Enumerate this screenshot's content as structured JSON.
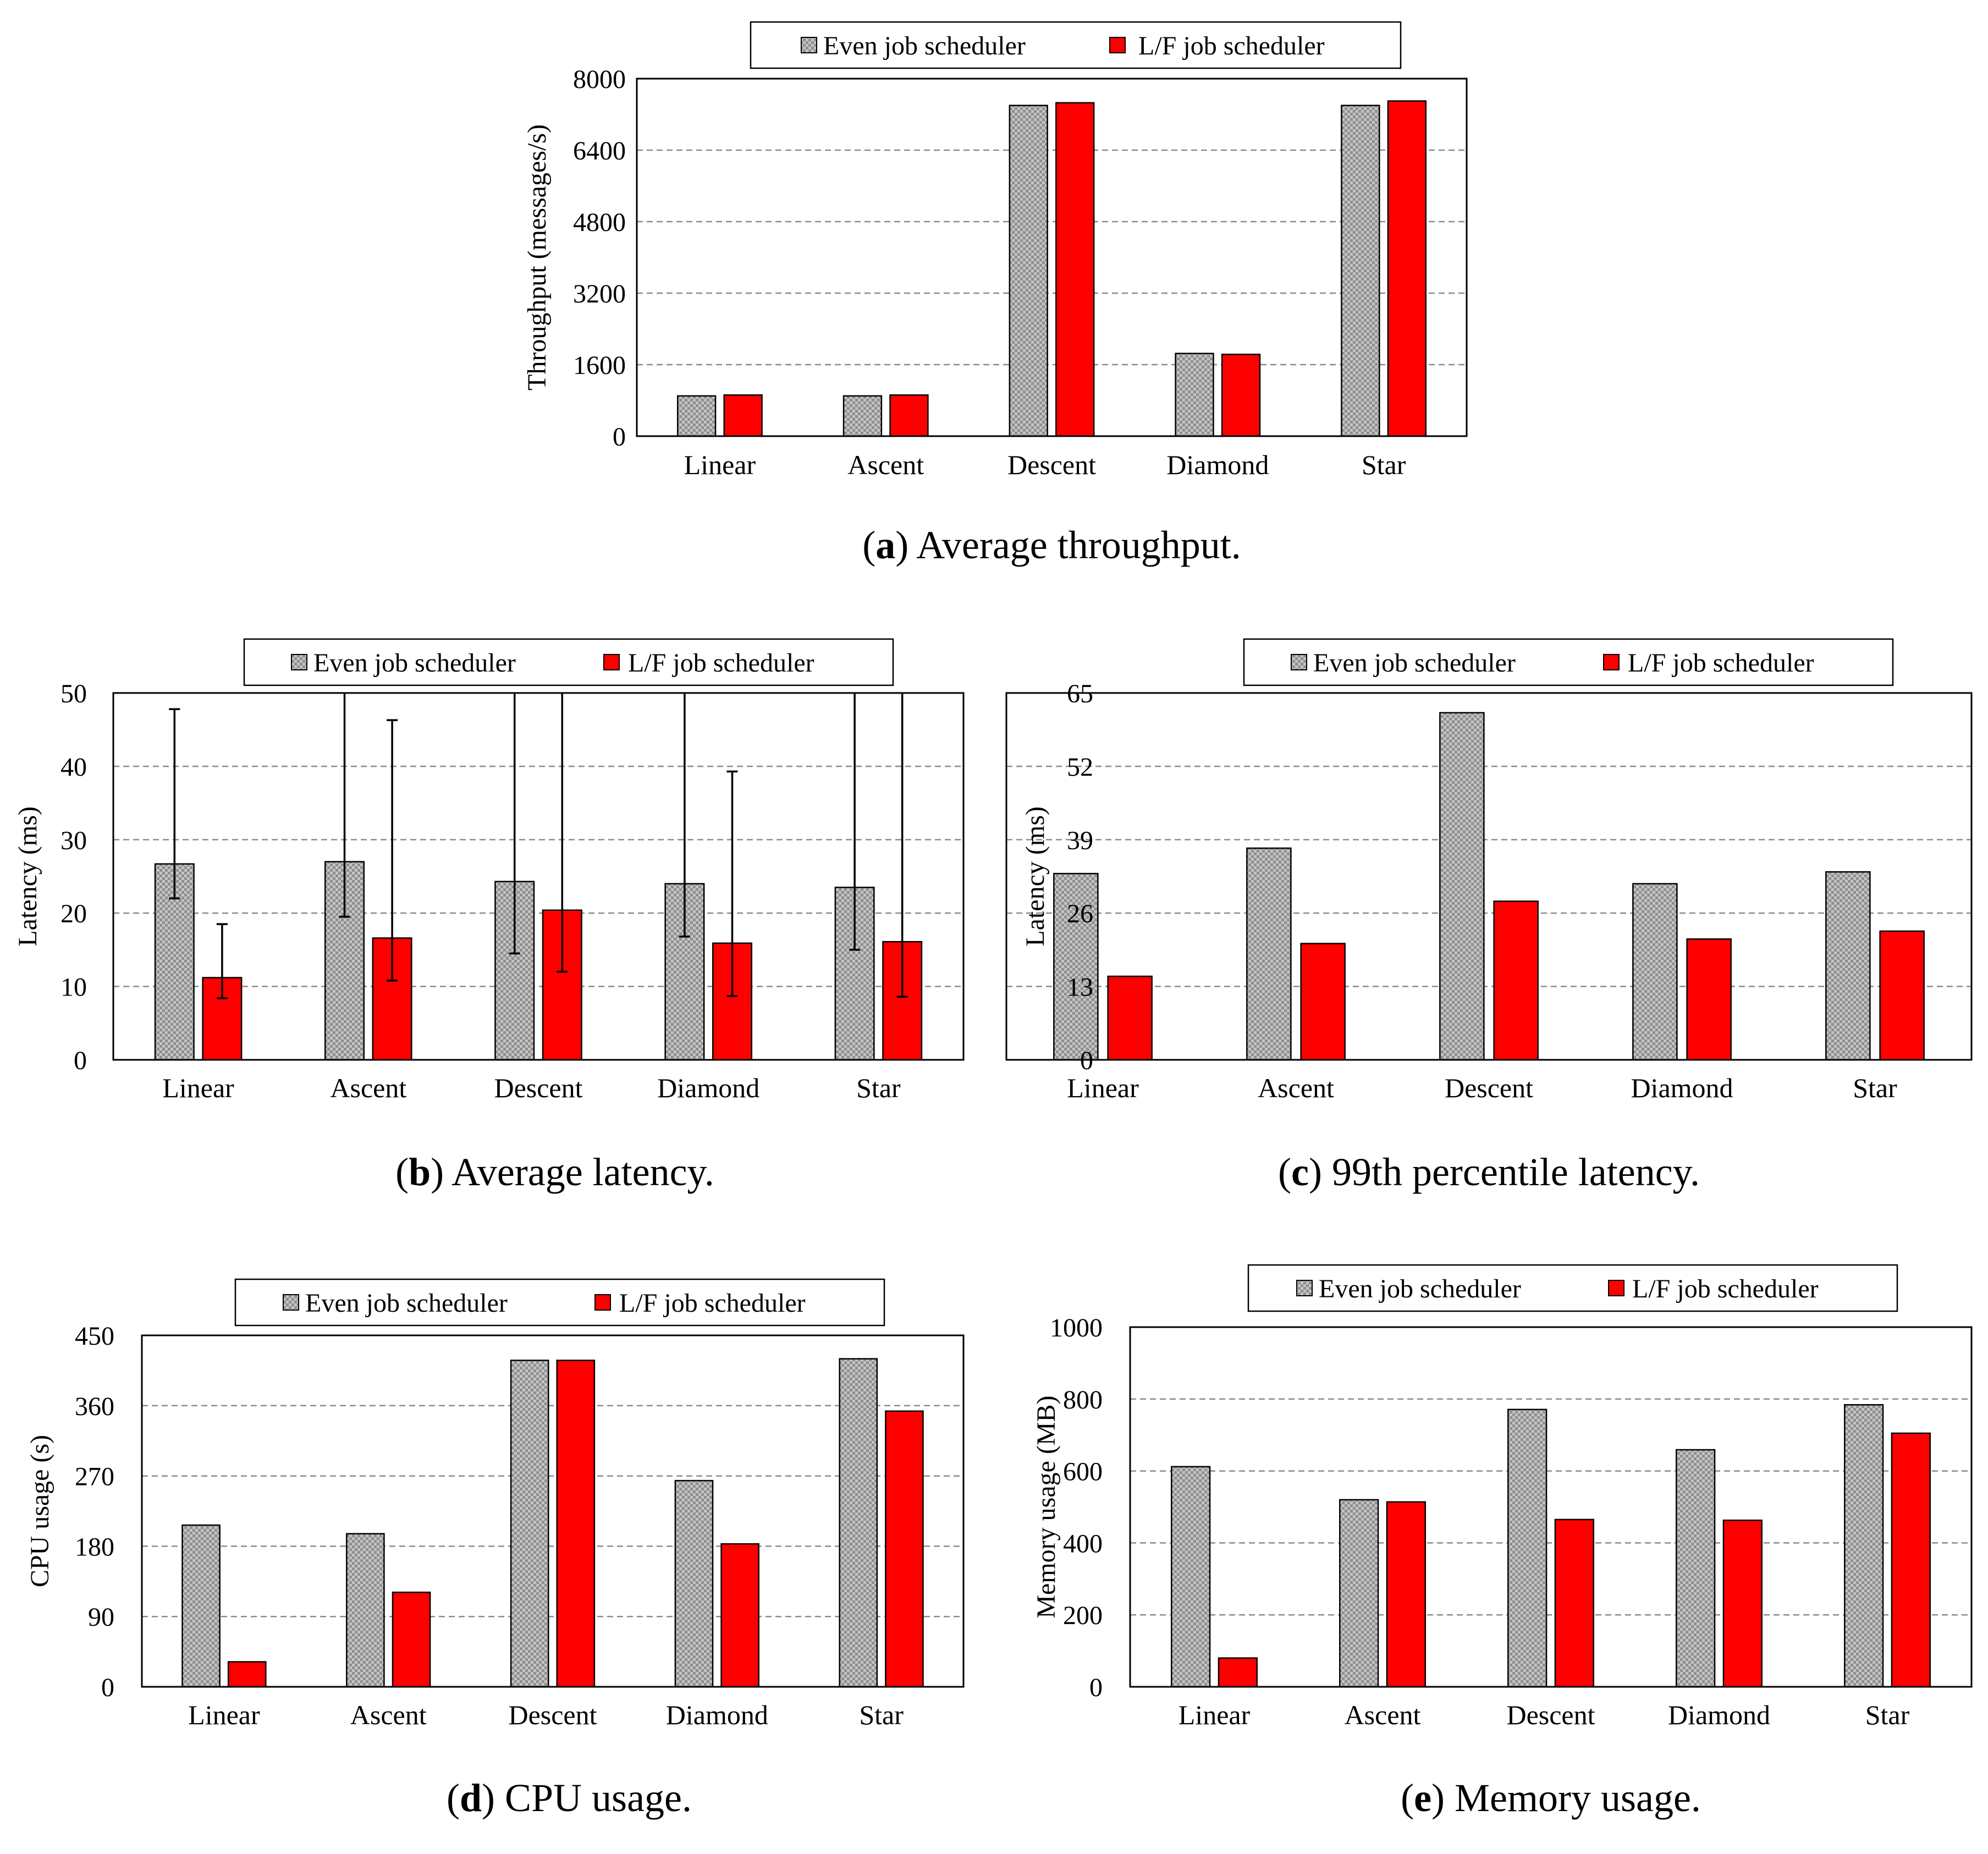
{
  "colors": {
    "even_fill": "#bdbdbd",
    "lf_fill": "#ff0000",
    "axis": "#000000",
    "grid": "#8c8c8c",
    "background": "#ffffff"
  },
  "legend": {
    "even_label": "Even job scheduler",
    "lf_label": "L/F job scheduler"
  },
  "chart_data": [
    {
      "id": "a",
      "type": "bar",
      "caption_letter": "a",
      "caption_text": ") Average throughput.",
      "ylabel": "Throughput (messages/s)",
      "ylim": [
        0,
        8000
      ],
      "yticks": [
        0,
        1600,
        3200,
        4800,
        6400,
        8000
      ],
      "ytick_labels": [
        "0",
        "1600",
        "3200",
        "4800",
        "6400",
        "8000"
      ],
      "grid": true,
      "legend_position": "top",
      "categories": [
        "Linear",
        "Ascent",
        "Descent",
        "Diamond",
        "Star"
      ],
      "series": [
        {
          "name": "Even job scheduler",
          "values": [
            900,
            900,
            7400,
            1850,
            7400
          ]
        },
        {
          "name": "L/F job scheduler",
          "values": [
            920,
            920,
            7460,
            1830,
            7500
          ]
        }
      ]
    },
    {
      "id": "b",
      "type": "bar",
      "caption_letter": "b",
      "caption_text": ") Average latency.",
      "ylabel": "Latency (ms)",
      "ylim": [
        0,
        50
      ],
      "yticks": [
        0,
        10,
        20,
        30,
        40,
        50
      ],
      "ytick_labels": [
        "0",
        "10",
        "20",
        "30",
        "40",
        "50"
      ],
      "grid": true,
      "legend_position": "top",
      "categories": [
        "Linear",
        "Ascent",
        "Descent",
        "Diamond",
        "Star"
      ],
      "series": [
        {
          "name": "Even job scheduler",
          "values": [
            26.7,
            27.0,
            24.3,
            24.0,
            23.5
          ],
          "error_low": [
            22.0,
            19.5,
            14.5,
            16.8,
            15.0
          ],
          "error_high": [
            47.8,
            50,
            50,
            50,
            50
          ]
        },
        {
          "name": "L/F job scheduler",
          "values": [
            11.2,
            16.6,
            20.4,
            15.9,
            16.1
          ],
          "error_low": [
            8.4,
            10.8,
            12.0,
            8.7,
            8.6
          ],
          "error_high": [
            18.5,
            46.3,
            50,
            39.3,
            50
          ]
        }
      ]
    },
    {
      "id": "c",
      "type": "bar",
      "caption_letter": "c",
      "caption_text": ") 99th percentile latency.",
      "ylabel": "Latency (ms)",
      "ylim": [
        0,
        65
      ],
      "yticks": [
        0,
        13,
        26,
        39,
        52,
        65
      ],
      "ytick_labels": [
        "0",
        "13",
        "26",
        "39",
        "52",
        "65"
      ],
      "grid": true,
      "legend_position": "top",
      "categories": [
        "Linear",
        "Ascent",
        "Descent",
        "Diamond",
        "Star"
      ],
      "series": [
        {
          "name": "Even job scheduler",
          "values": [
            33.0,
            37.5,
            61.5,
            31.2,
            33.3
          ]
        },
        {
          "name": "L/F job scheduler",
          "values": [
            14.8,
            20.6,
            28.1,
            21.4,
            22.8
          ]
        }
      ]
    },
    {
      "id": "d",
      "type": "bar",
      "caption_letter": "d",
      "caption_text": ") CPU usage.",
      "ylabel": "CPU usage (s)",
      "ylim": [
        0,
        450
      ],
      "yticks": [
        0,
        90,
        180,
        270,
        360,
        450
      ],
      "ytick_labels": [
        "0",
        "90",
        "180",
        "270",
        "360",
        "450"
      ],
      "grid": true,
      "legend_position": "top",
      "categories": [
        "Linear",
        "Ascent",
        "Descent",
        "Diamond",
        "Star"
      ],
      "series": [
        {
          "name": "Even job scheduler",
          "values": [
            207,
            196,
            418,
            264,
            420
          ]
        },
        {
          "name": "L/F job scheduler",
          "values": [
            32,
            121,
            418,
            183,
            353
          ]
        }
      ]
    },
    {
      "id": "e",
      "type": "bar",
      "caption_letter": "e",
      "caption_text": ") Memory usage.",
      "ylabel": "Memory usage (MB)",
      "ylim": [
        0,
        1000
      ],
      "yticks": [
        0,
        200,
        400,
        600,
        800,
        1000
      ],
      "ytick_labels": [
        "0",
        "200",
        "400",
        "600",
        "800",
        "1000"
      ],
      "grid": true,
      "legend_position": "top",
      "categories": [
        "Linear",
        "Ascent",
        "Descent",
        "Diamond",
        "Star"
      ],
      "series": [
        {
          "name": "Even job scheduler",
          "values": [
            612,
            520,
            771,
            659,
            784
          ]
        },
        {
          "name": "L/F job scheduler",
          "values": [
            80,
            514,
            465,
            463,
            705
          ]
        }
      ]
    }
  ]
}
